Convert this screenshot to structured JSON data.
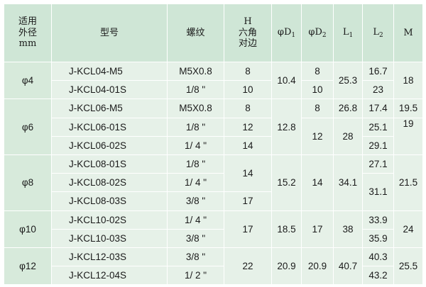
{
  "header": {
    "od_line1": "适用",
    "od_line2": "外径",
    "od_unit": "mm",
    "model": "型号",
    "thread": "螺纹",
    "hex_symbol": "H",
    "hex_line1": "六角",
    "hex_line2": "对边",
    "d1_prefix": "φD",
    "d1_sub": "1",
    "d2_prefix": "φD",
    "d2_sub": "2",
    "l1_prefix": "L",
    "l1_sub": "1",
    "l2_prefix": "L",
    "l2_sub": "2",
    "m": "M"
  },
  "groups": [
    {
      "od": "φ4",
      "models": [
        "J-KCL04-M5",
        "J-KCL04-01S"
      ],
      "threads": [
        "M5X0.8",
        "1/8 \""
      ],
      "h": [
        "8",
        "10"
      ],
      "d1": "10.4",
      "d2": [
        "8",
        "10"
      ],
      "l1": "25.3",
      "l2": [
        "16.7",
        "23"
      ],
      "m": "18"
    },
    {
      "od": "φ6",
      "models": [
        "J-KCL06-M5",
        "J-KCL06-01S",
        "J-KCL06-02S"
      ],
      "threads": [
        "M5X0.8",
        "1/8 \"",
        "1/ 4 \""
      ],
      "h": [
        "8",
        "12",
        "14"
      ],
      "d1": "12.8",
      "d2": [
        "8",
        "12"
      ],
      "l1": [
        "26.8",
        "28"
      ],
      "l2": [
        "17.4",
        "25.1",
        "29.1"
      ],
      "m": [
        "19.5",
        "19"
      ]
    },
    {
      "od": "φ8",
      "models": [
        "J-KCL08-01S",
        "J-KCL08-02S",
        "J-KCL08-03S"
      ],
      "threads": [
        "1/8 \"",
        "1/ 4 \"",
        "3/8 \""
      ],
      "h": [
        "14",
        "17"
      ],
      "d1": "15.2",
      "d2": "14",
      "l1": "34.1",
      "l2": [
        "27.1",
        "31.1"
      ],
      "m": "21.5"
    },
    {
      "od": "φ10",
      "models": [
        "J-KCL10-02S",
        "J-KCL10-03S"
      ],
      "threads": [
        "1/ 4 \"",
        "3/8 \""
      ],
      "h": "17",
      "d1": "18.5",
      "d2": "17",
      "l1": "38",
      "l2": [
        "33.9",
        "35.9"
      ],
      "m": "24"
    },
    {
      "od": "φ12",
      "models": [
        "J-KCL12-03S",
        "J-KCL12-04S"
      ],
      "threads": [
        "3/8 \"",
        "1/ 2 \""
      ],
      "h": "22",
      "d1": "20.9",
      "d2": "20.9",
      "l1": "40.7",
      "l2": [
        "40.3",
        "43.2"
      ],
      "m": "25.5"
    }
  ]
}
